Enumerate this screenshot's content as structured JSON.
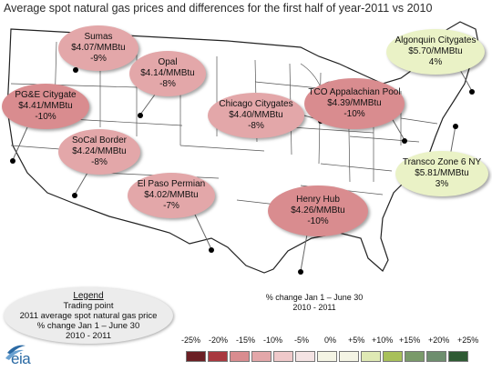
{
  "title": "Average spot natural gas prices and differences for the first half of year-2011 vs 2010",
  "hubs": [
    {
      "name": "Sumas",
      "price": "$4.07/MMBtu",
      "change": "-9%",
      "color": "#e3a7a9"
    },
    {
      "name": "Opal",
      "price": "$4.14/MMBtu",
      "change": "-8%",
      "color": "#e3a7a9"
    },
    {
      "name": "PG&E Citygate",
      "price": "$4.41/MMBtu",
      "change": "-10%",
      "color": "#d98c8f"
    },
    {
      "name": "SoCal Border",
      "price": "$4.24/MMBtu",
      "change": "-8%",
      "color": "#e3a7a9"
    },
    {
      "name": "El Paso Permian",
      "price": "$4.02/MMBtu",
      "change": "-7%",
      "color": "#e3a7a9"
    },
    {
      "name": "Chicago Citygates",
      "price": "$4.40/MMBtu",
      "change": "-8%",
      "color": "#e3a7a9"
    },
    {
      "name": "TCO Appalachian Pool",
      "price": "$4.39/MMBtu",
      "change": "-10%",
      "color": "#d98c8f"
    },
    {
      "name": "Henry Hub",
      "price": "$4.26/MMBtu",
      "change": "-10%",
      "color": "#d98c8f"
    },
    {
      "name": "Algonquin Citygates",
      "price": "$5.70/MMBtu",
      "change": "4%",
      "color": "#eaf2c6"
    },
    {
      "name": "Transco Zone 6 NY",
      "price": "$5.81/MMBtu",
      "change": "3%",
      "color": "#eaf2c6"
    }
  ],
  "legend": {
    "heading": "Legend",
    "line1": "Trading point",
    "line2": "2011 average spot natural gas price",
    "line3": "% change Jan 1 – June 30",
    "line4": "2010 - 2011"
  },
  "pct_note": {
    "line1": "% change Jan 1 – June 30",
    "line2": "2010 - 2011"
  },
  "scale": {
    "labels": [
      "-25%",
      "-20%",
      "-15%",
      "-10%",
      "-5%",
      "0%",
      "+5%",
      "+10%",
      "+15%",
      "+20%",
      "+25%"
    ],
    "colors": [
      "#6b1f24",
      "#a8383f",
      "#d98c8f",
      "#e3a7a9",
      "#efc9ca",
      "#f4e3e3",
      "#f4f4e4",
      "#dfe9b4",
      "#a8c05a",
      "#7a9a6a",
      "#2e5a33"
    ]
  },
  "logo_text": "eia"
}
